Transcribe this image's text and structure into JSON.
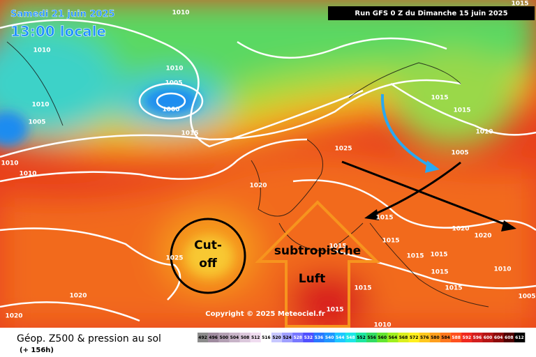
{
  "header": {
    "date": "Samedi 21 juin 2025",
    "time": "13:00 locale",
    "run": "Run GFS 0 Z du Dimanche 15 juin 2025"
  },
  "annotations": {
    "cutoff": [
      "Cut-",
      "off"
    ],
    "air": [
      "subtropische",
      "Luft"
    ]
  },
  "copyright": "Copyright © 2025 Meteociel.fr",
  "isobar_labels": [
    1010,
    1015,
    1010,
    1010,
    1005,
    1000,
    1010,
    1005,
    1015,
    1015,
    1015,
    1010,
    1025,
    1005,
    1010,
    1010,
    1020,
    1015,
    1015,
    1020,
    1020,
    1015,
    1015,
    1015,
    1015,
    1010,
    1025,
    1015,
    1015,
    1010,
    1020,
    1020,
    1005,
    1015
  ],
  "legend": {
    "title": "Géop. Z500 & pression au sol",
    "subtitle": "(+ 156h)",
    "scale": [
      492,
      496,
      500,
      504,
      508,
      512,
      516,
      520,
      524,
      528,
      532,
      536,
      540,
      544,
      548,
      552,
      556,
      560,
      564,
      568,
      572,
      576,
      580,
      584,
      588,
      592,
      596,
      600,
      604,
      608,
      612
    ]
  }
}
